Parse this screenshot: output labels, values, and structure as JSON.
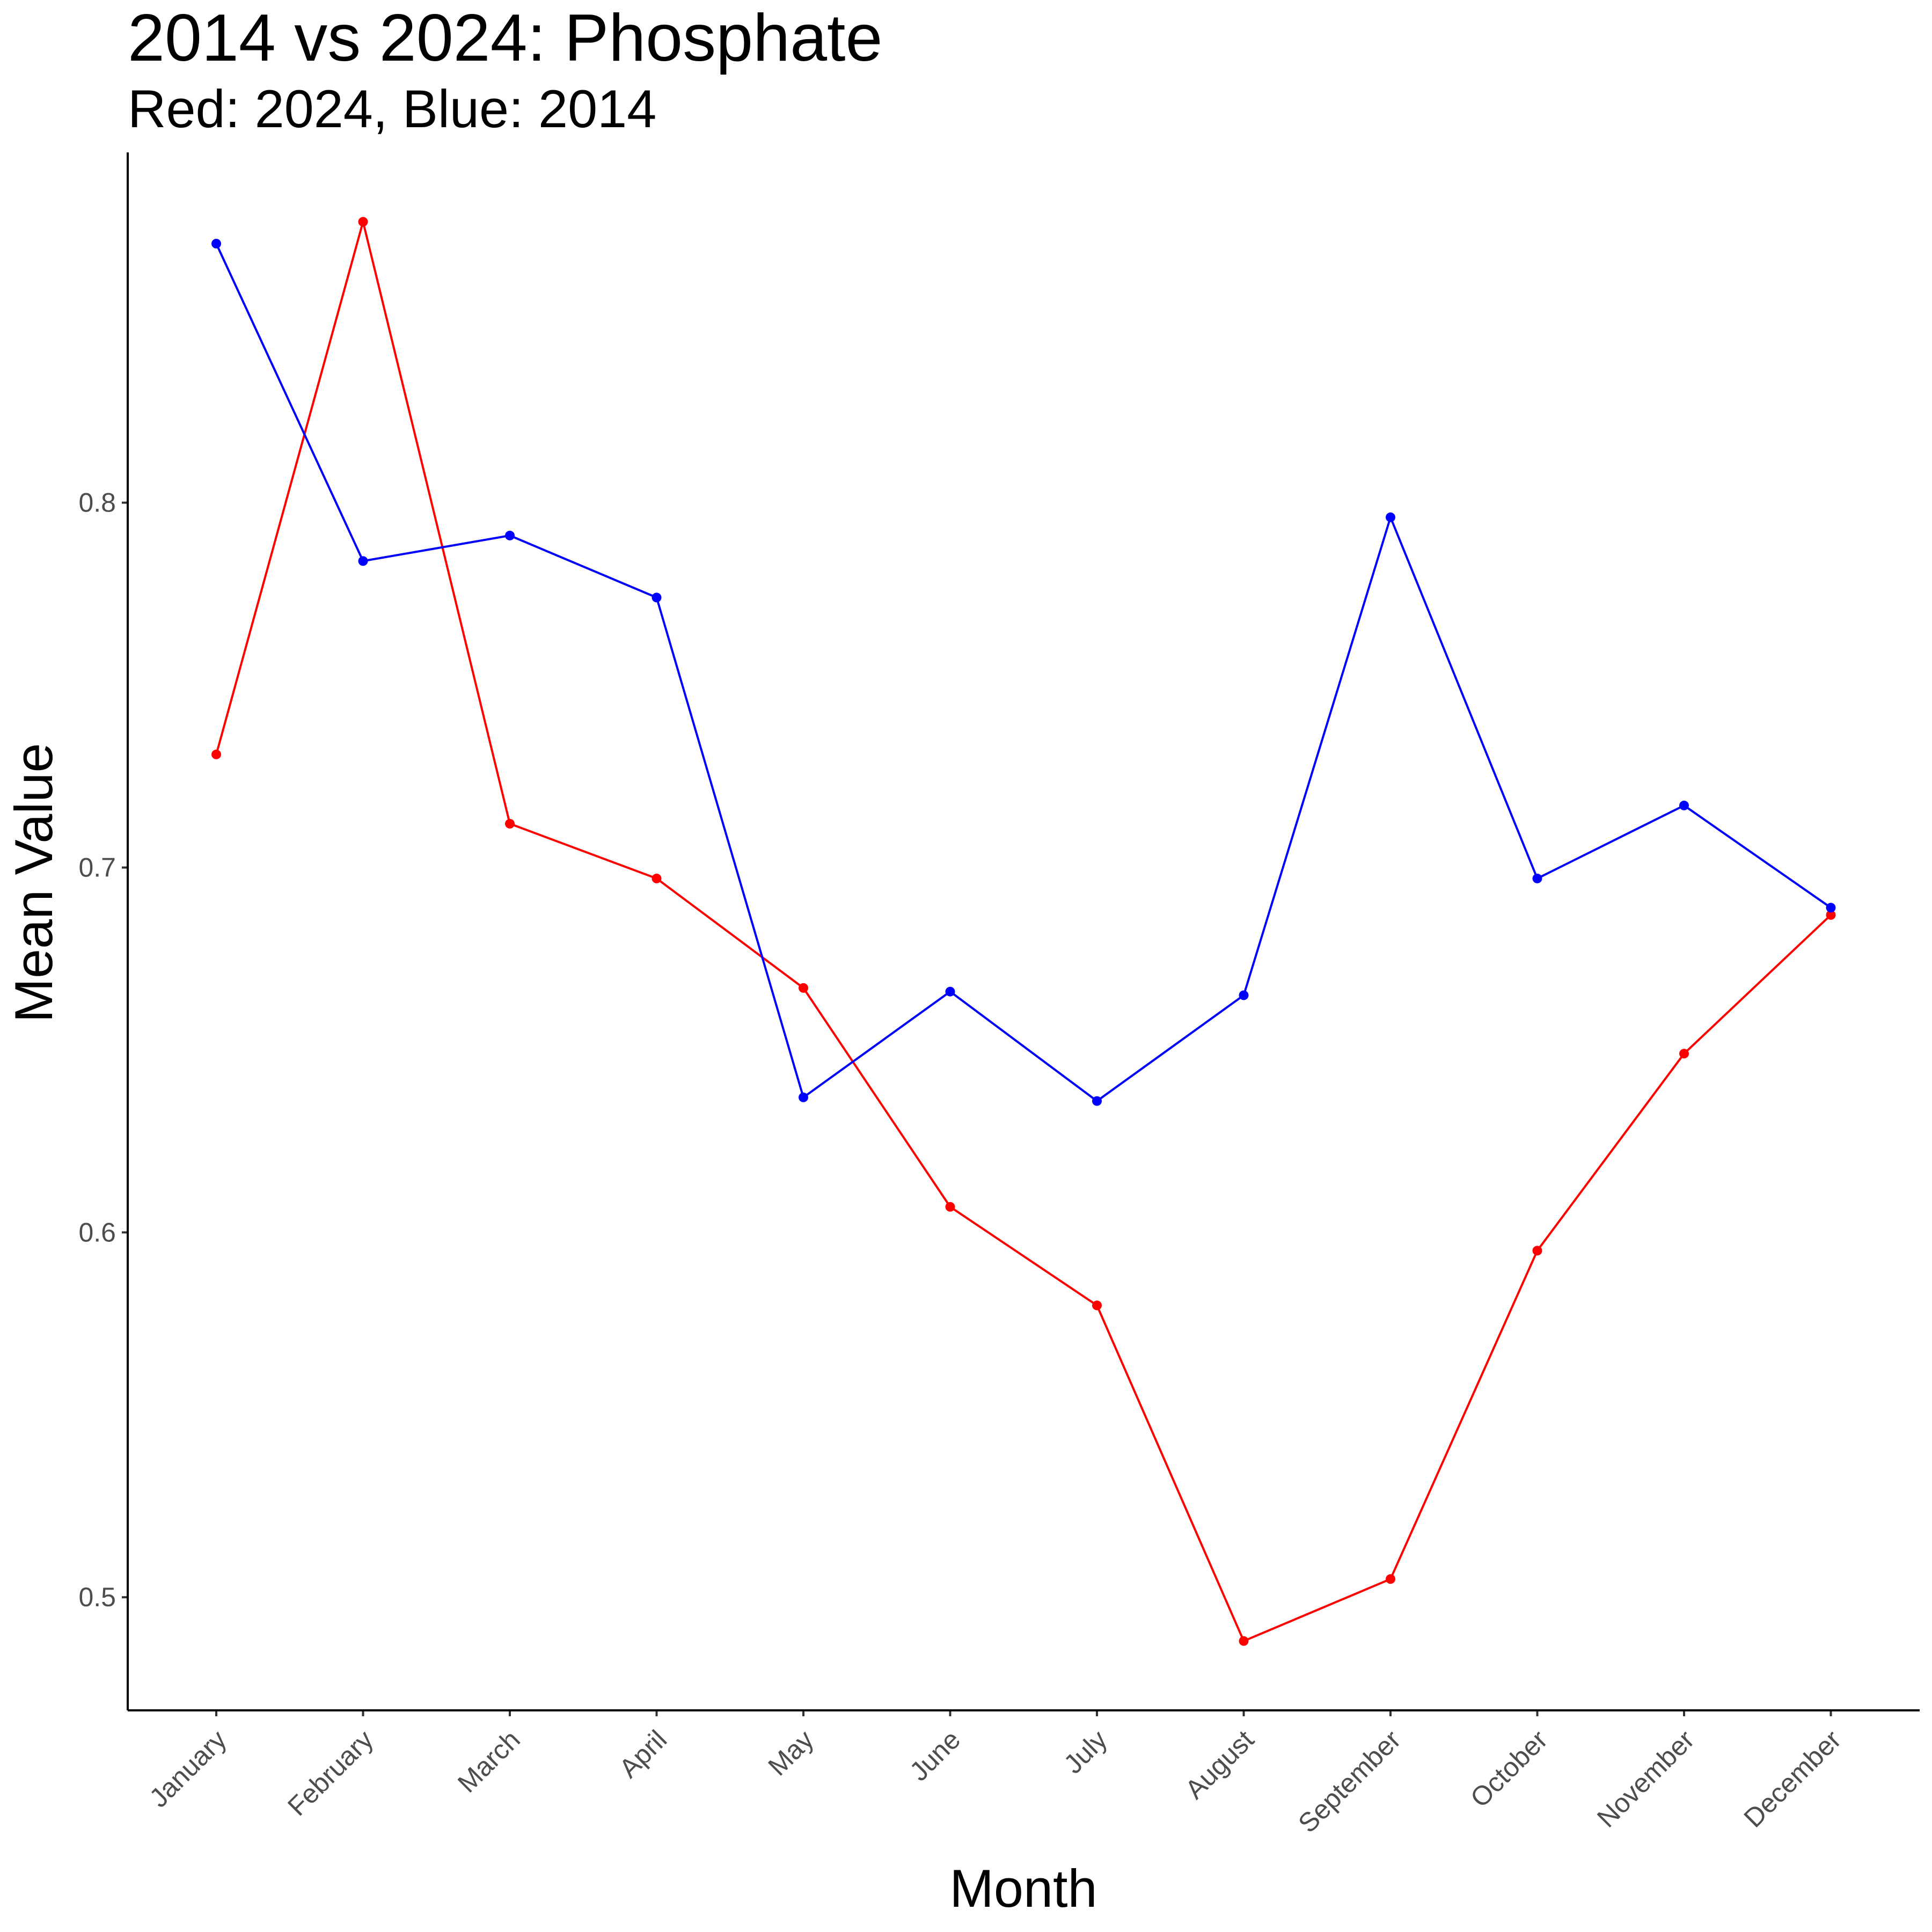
{
  "chart_data": {
    "type": "line",
    "title": "2014 vs 2024: Phosphate",
    "subtitle": "Red: 2024, Blue: 2014",
    "xlabel": "Month",
    "ylabel": "Mean Value",
    "categories": [
      "January",
      "February",
      "March",
      "April",
      "May",
      "June",
      "July",
      "August",
      "September",
      "October",
      "November",
      "December"
    ],
    "y_ticks": [
      0.5,
      0.6,
      0.7,
      0.8
    ],
    "y_tick_labels": [
      "0.5",
      "0.6",
      "0.7",
      "0.8"
    ],
    "ylim": [
      0.469,
      0.896
    ],
    "grid": false,
    "legend": "none",
    "series": [
      {
        "color": "#ff0000",
        "values": [
          0.731,
          0.877,
          0.712,
          0.697,
          0.667,
          0.607,
          0.58,
          0.488,
          0.505,
          0.595,
          0.649,
          0.687
        ]
      },
      {
        "color": "#0000ff",
        "values": [
          0.871,
          0.784,
          0.791,
          0.774,
          0.637,
          0.666,
          0.636,
          0.665,
          0.796,
          0.697,
          0.717,
          0.689
        ]
      }
    ]
  }
}
